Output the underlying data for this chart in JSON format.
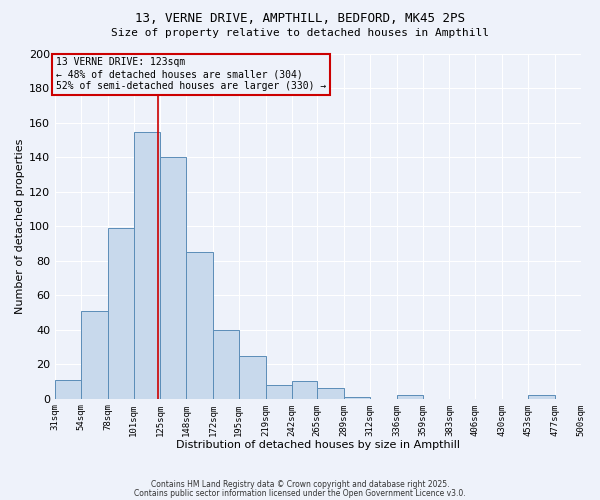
{
  "title_line1": "13, VERNE DRIVE, AMPTHILL, BEDFORD, MK45 2PS",
  "title_line2": "Size of property relative to detached houses in Ampthill",
  "xlabel": "Distribution of detached houses by size in Ampthill",
  "ylabel": "Number of detached properties",
  "bin_edges": [
    31,
    54,
    78,
    101,
    125,
    148,
    172,
    195,
    219,
    242,
    265,
    289,
    312,
    336,
    359,
    383,
    406,
    430,
    453,
    477,
    500
  ],
  "bar_heights": [
    11,
    51,
    99,
    155,
    140,
    85,
    40,
    25,
    8,
    10,
    6,
    1,
    0,
    2,
    0,
    0,
    0,
    0,
    2,
    0
  ],
  "property_size": 123,
  "bar_facecolor": "#c8d9ec",
  "bar_edgecolor": "#5b8db8",
  "vline_color": "#cc0000",
  "background_color": "#eef2fa",
  "grid_color": "#ffffff",
  "annotation_text": "13 VERNE DRIVE: 123sqm\n← 48% of detached houses are smaller (304)\n52% of semi-detached houses are larger (330) →",
  "annotation_box_edgecolor": "#cc0000",
  "footer_line1": "Contains HM Land Registry data © Crown copyright and database right 2025.",
  "footer_line2": "Contains public sector information licensed under the Open Government Licence v3.0.",
  "ylim": [
    0,
    200
  ],
  "yticks": [
    0,
    20,
    40,
    60,
    80,
    100,
    120,
    140,
    160,
    180,
    200
  ],
  "tick_labels": [
    "31sqm",
    "54sqm",
    "78sqm",
    "101sqm",
    "125sqm",
    "148sqm",
    "172sqm",
    "195sqm",
    "219sqm",
    "242sqm",
    "265sqm",
    "289sqm",
    "312sqm",
    "336sqm",
    "359sqm",
    "383sqm",
    "406sqm",
    "430sqm",
    "453sqm",
    "477sqm",
    "500sqm"
  ]
}
